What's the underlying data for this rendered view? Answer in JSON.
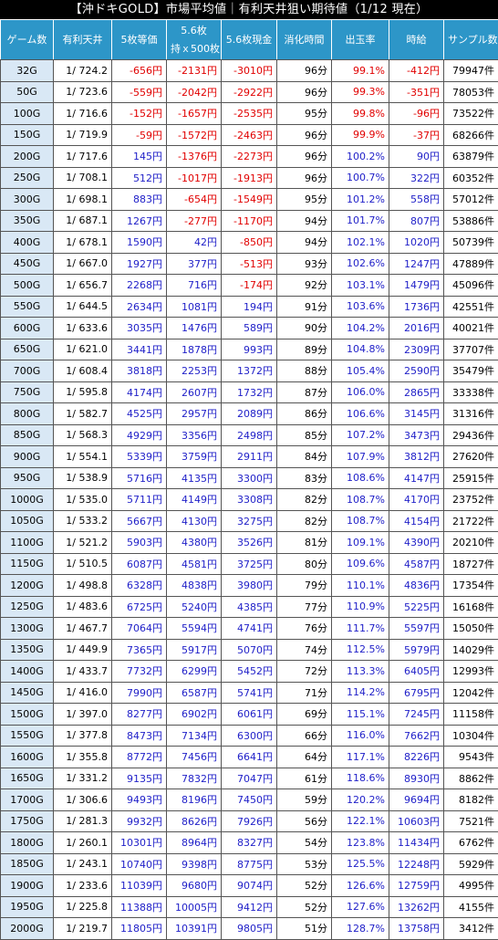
{
  "title": "【沖ドキGOLD】市場平均値｜有利天井狙い期待値（1/12 現在）",
  "headers": {
    "game": "ゲーム数",
    "tenjou": "有利天井",
    "v5": "5枚等価",
    "v56_line1": "5.6枚",
    "v56_line2": "持ｘ500枚",
    "v56cash": "5.6枚現金",
    "time": "消化時間",
    "rate": "出玉率",
    "hourly": "時給",
    "sample": "サンプル数"
  },
  "colors": {
    "header_bg": "#2d96c8",
    "game_col_bg": "#d9e8f5",
    "positive": "#1e1ec8",
    "negative": "#e10000"
  },
  "rows": [
    {
      "g": "32G",
      "t": "1/ 724.2",
      "a": "-656円",
      "b": "-2131円",
      "c": "-3010円",
      "m": "96分",
      "r": "99.1%",
      "h": "-412円",
      "s": "79947件"
    },
    {
      "g": "50G",
      "t": "1/ 723.6",
      "a": "-559円",
      "b": "-2042円",
      "c": "-2922円",
      "m": "96分",
      "r": "99.3%",
      "h": "-351円",
      "s": "78053件"
    },
    {
      "g": "100G",
      "t": "1/ 716.6",
      "a": "-152円",
      "b": "-1657円",
      "c": "-2535円",
      "m": "95分",
      "r": "99.8%",
      "h": "-96円",
      "s": "73522件"
    },
    {
      "g": "150G",
      "t": "1/ 719.9",
      "a": "-59円",
      "b": "-1572円",
      "c": "-2463円",
      "m": "96分",
      "r": "99.9%",
      "h": "-37円",
      "s": "68266件"
    },
    {
      "g": "200G",
      "t": "1/ 717.6",
      "a": "145円",
      "b": "-1376円",
      "c": "-2273円",
      "m": "96分",
      "r": "100.2%",
      "h": "90円",
      "s": "63879件"
    },
    {
      "g": "250G",
      "t": "1/ 708.1",
      "a": "512円",
      "b": "-1017円",
      "c": "-1913円",
      "m": "96分",
      "r": "100.7%",
      "h": "322円",
      "s": "60352件"
    },
    {
      "g": "300G",
      "t": "1/ 698.1",
      "a": "883円",
      "b": "-654円",
      "c": "-1549円",
      "m": "95分",
      "r": "101.2%",
      "h": "558円",
      "s": "57012件"
    },
    {
      "g": "350G",
      "t": "1/ 687.1",
      "a": "1267円",
      "b": "-277円",
      "c": "-1170円",
      "m": "94分",
      "r": "101.7%",
      "h": "807円",
      "s": "53886件"
    },
    {
      "g": "400G",
      "t": "1/ 678.1",
      "a": "1590円",
      "b": "42円",
      "c": "-850円",
      "m": "94分",
      "r": "102.1%",
      "h": "1020円",
      "s": "50739件"
    },
    {
      "g": "450G",
      "t": "1/ 667.0",
      "a": "1927円",
      "b": "377円",
      "c": "-513円",
      "m": "93分",
      "r": "102.6%",
      "h": "1247円",
      "s": "47889件"
    },
    {
      "g": "500G",
      "t": "1/ 656.7",
      "a": "2268円",
      "b": "716円",
      "c": "-174円",
      "m": "92分",
      "r": "103.1%",
      "h": "1479円",
      "s": "45096件"
    },
    {
      "g": "550G",
      "t": "1/ 644.5",
      "a": "2634円",
      "b": "1081円",
      "c": "194円",
      "m": "91分",
      "r": "103.6%",
      "h": "1736円",
      "s": "42551件"
    },
    {
      "g": "600G",
      "t": "1/ 633.6",
      "a": "3035円",
      "b": "1476円",
      "c": "589円",
      "m": "90分",
      "r": "104.2%",
      "h": "2016円",
      "s": "40021件"
    },
    {
      "g": "650G",
      "t": "1/ 621.0",
      "a": "3441円",
      "b": "1878円",
      "c": "993円",
      "m": "89分",
      "r": "104.8%",
      "h": "2309円",
      "s": "37707件"
    },
    {
      "g": "700G",
      "t": "1/ 608.4",
      "a": "3818円",
      "b": "2253円",
      "c": "1372円",
      "m": "88分",
      "r": "105.4%",
      "h": "2590円",
      "s": "35479件"
    },
    {
      "g": "750G",
      "t": "1/ 595.8",
      "a": "4174円",
      "b": "2607円",
      "c": "1732円",
      "m": "87分",
      "r": "106.0%",
      "h": "2865円",
      "s": "33338件"
    },
    {
      "g": "800G",
      "t": "1/ 582.7",
      "a": "4525円",
      "b": "2957円",
      "c": "2089円",
      "m": "86分",
      "r": "106.6%",
      "h": "3145円",
      "s": "31316件"
    },
    {
      "g": "850G",
      "t": "1/ 568.3",
      "a": "4929円",
      "b": "3356円",
      "c": "2498円",
      "m": "85分",
      "r": "107.2%",
      "h": "3473円",
      "s": "29436件"
    },
    {
      "g": "900G",
      "t": "1/ 554.1",
      "a": "5339円",
      "b": "3759円",
      "c": "2911円",
      "m": "84分",
      "r": "107.9%",
      "h": "3812円",
      "s": "27620件"
    },
    {
      "g": "950G",
      "t": "1/ 538.9",
      "a": "5716円",
      "b": "4135円",
      "c": "3300円",
      "m": "83分",
      "r": "108.6%",
      "h": "4147円",
      "s": "25915件"
    },
    {
      "g": "1000G",
      "t": "1/ 535.0",
      "a": "5711円",
      "b": "4149円",
      "c": "3308円",
      "m": "82分",
      "r": "108.7%",
      "h": "4170円",
      "s": "23752件"
    },
    {
      "g": "1050G",
      "t": "1/ 533.2",
      "a": "5667円",
      "b": "4130円",
      "c": "3275円",
      "m": "82分",
      "r": "108.7%",
      "h": "4154円",
      "s": "21722件"
    },
    {
      "g": "1100G",
      "t": "1/ 521.2",
      "a": "5903円",
      "b": "4380円",
      "c": "3526円",
      "m": "81分",
      "r": "109.1%",
      "h": "4390円",
      "s": "20210件"
    },
    {
      "g": "1150G",
      "t": "1/ 510.5",
      "a": "6087円",
      "b": "4581円",
      "c": "3725円",
      "m": "80分",
      "r": "109.6%",
      "h": "4587円",
      "s": "18727件"
    },
    {
      "g": "1200G",
      "t": "1/ 498.8",
      "a": "6328円",
      "b": "4838円",
      "c": "3980円",
      "m": "79分",
      "r": "110.1%",
      "h": "4836円",
      "s": "17354件"
    },
    {
      "g": "1250G",
      "t": "1/ 483.6",
      "a": "6725円",
      "b": "5240円",
      "c": "4385円",
      "m": "77分",
      "r": "110.9%",
      "h": "5225円",
      "s": "16168件"
    },
    {
      "g": "1300G",
      "t": "1/ 467.7",
      "a": "7064円",
      "b": "5594円",
      "c": "4741円",
      "m": "76分",
      "r": "111.7%",
      "h": "5597円",
      "s": "15050件"
    },
    {
      "g": "1350G",
      "t": "1/ 449.9",
      "a": "7365円",
      "b": "5917円",
      "c": "5070円",
      "m": "74分",
      "r": "112.5%",
      "h": "5979円",
      "s": "14029件"
    },
    {
      "g": "1400G",
      "t": "1/ 433.7",
      "a": "7732円",
      "b": "6299円",
      "c": "5452円",
      "m": "72分",
      "r": "113.3%",
      "h": "6405円",
      "s": "12993件"
    },
    {
      "g": "1450G",
      "t": "1/ 416.0",
      "a": "7990円",
      "b": "6587円",
      "c": "5741円",
      "m": "71分",
      "r": "114.2%",
      "h": "6795円",
      "s": "12042件"
    },
    {
      "g": "1500G",
      "t": "1/ 397.0",
      "a": "8277円",
      "b": "6902円",
      "c": "6061円",
      "m": "69分",
      "r": "115.1%",
      "h": "7245円",
      "s": "11158件"
    },
    {
      "g": "1550G",
      "t": "1/ 377.8",
      "a": "8473円",
      "b": "7134円",
      "c": "6300円",
      "m": "66分",
      "r": "116.0%",
      "h": "7662円",
      "s": "10304件"
    },
    {
      "g": "1600G",
      "t": "1/ 355.8",
      "a": "8772円",
      "b": "7456円",
      "c": "6641円",
      "m": "64分",
      "r": "117.1%",
      "h": "8226円",
      "s": "9543件"
    },
    {
      "g": "1650G",
      "t": "1/ 331.2",
      "a": "9135円",
      "b": "7832円",
      "c": "7047円",
      "m": "61分",
      "r": "118.6%",
      "h": "8930円",
      "s": "8862件"
    },
    {
      "g": "1700G",
      "t": "1/ 306.6",
      "a": "9493円",
      "b": "8196円",
      "c": "7450円",
      "m": "59分",
      "r": "120.2%",
      "h": "9694円",
      "s": "8182件"
    },
    {
      "g": "1750G",
      "t": "1/ 281.3",
      "a": "9932円",
      "b": "8626円",
      "c": "7926円",
      "m": "56分",
      "r": "122.1%",
      "h": "10603円",
      "s": "7521件"
    },
    {
      "g": "1800G",
      "t": "1/ 260.1",
      "a": "10301円",
      "b": "8964円",
      "c": "8327円",
      "m": "54分",
      "r": "123.8%",
      "h": "11434円",
      "s": "6762件"
    },
    {
      "g": "1850G",
      "t": "1/ 243.1",
      "a": "10740円",
      "b": "9398円",
      "c": "8775円",
      "m": "53分",
      "r": "125.5%",
      "h": "12248円",
      "s": "5929件"
    },
    {
      "g": "1900G",
      "t": "1/ 233.6",
      "a": "11039円",
      "b": "9680円",
      "c": "9074円",
      "m": "52分",
      "r": "126.6%",
      "h": "12759円",
      "s": "4995件"
    },
    {
      "g": "1950G",
      "t": "1/ 225.8",
      "a": "11388円",
      "b": "10005円",
      "c": "9412円",
      "m": "52分",
      "r": "127.6%",
      "h": "13262円",
      "s": "4155件"
    },
    {
      "g": "2000G",
      "t": "1/ 219.7",
      "a": "11805円",
      "b": "10391円",
      "c": "9805円",
      "m": "51分",
      "r": "128.7%",
      "h": "13758円",
      "s": "3412件"
    }
  ]
}
